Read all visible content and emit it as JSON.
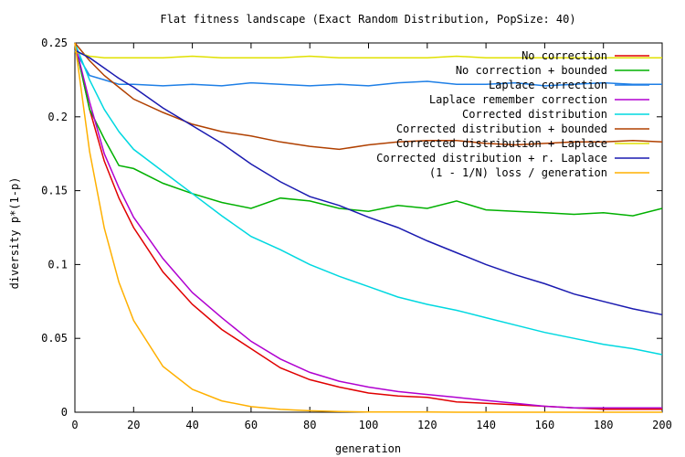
{
  "chart_data": {
    "type": "line",
    "title": "Flat fitness landscape (Exact Random Distribution, PopSize: 40)",
    "xlabel": "generation",
    "ylabel": "diversity p*(1-p)",
    "xlim": [
      0,
      200
    ],
    "ylim": [
      0,
      0.25
    ],
    "xticks": [
      "0",
      "20",
      "40",
      "60",
      "80",
      "100",
      "120",
      "140",
      "160",
      "180",
      "200"
    ],
    "yticks": [
      "0",
      "0.05",
      "0.1",
      "0.15",
      "0.2",
      "0.25"
    ],
    "grid": false,
    "legend_position": "top-right",
    "x": [
      0,
      5,
      10,
      15,
      20,
      30,
      40,
      50,
      60,
      70,
      80,
      90,
      100,
      110,
      120,
      130,
      140,
      150,
      160,
      170,
      180,
      190,
      200
    ],
    "series": [
      {
        "name": "No correction",
        "color": "#e00000",
        "values": [
          0.25,
          0.205,
          0.17,
          0.145,
          0.125,
          0.095,
          0.073,
          0.056,
          0.043,
          0.03,
          0.022,
          0.017,
          0.013,
          0.011,
          0.01,
          0.007,
          0.006,
          0.005,
          0.004,
          0.003,
          0.002,
          0.002,
          0.002
        ]
      },
      {
        "name": "No correction + bounded",
        "color": "#00b000",
        "values": [
          0.25,
          0.205,
          0.185,
          0.167,
          0.165,
          0.155,
          0.148,
          0.142,
          0.138,
          0.145,
          0.143,
          0.138,
          0.136,
          0.14,
          0.138,
          0.143,
          0.137,
          0.136,
          0.135,
          0.134,
          0.135,
          0.133,
          0.138
        ]
      },
      {
        "name": "Laplace correction",
        "color": "#1e7fe6",
        "values": [
          0.245,
          0.228,
          0.225,
          0.222,
          0.222,
          0.221,
          0.222,
          0.221,
          0.223,
          0.222,
          0.221,
          0.222,
          0.221,
          0.223,
          0.224,
          0.222,
          0.222,
          0.223,
          0.221,
          0.222,
          0.223,
          0.222,
          0.222
        ]
      },
      {
        "name": "Laplace remember correction",
        "color": "#b000d0",
        "values": [
          0.25,
          0.21,
          0.175,
          0.152,
          0.132,
          0.104,
          0.081,
          0.064,
          0.048,
          0.036,
          0.027,
          0.021,
          0.017,
          0.014,
          0.012,
          0.01,
          0.008,
          0.006,
          0.004,
          0.003,
          0.003,
          0.003,
          0.003
        ]
      },
      {
        "name": "Corrected distribution",
        "color": "#00d8e0",
        "values": [
          0.25,
          0.225,
          0.205,
          0.19,
          0.178,
          0.163,
          0.148,
          0.133,
          0.119,
          0.11,
          0.1,
          0.092,
          0.085,
          0.078,
          0.073,
          0.069,
          0.064,
          0.059,
          0.054,
          0.05,
          0.046,
          0.043,
          0.039
        ]
      },
      {
        "name": "Corrected distribution + bounded",
        "color": "#b04000",
        "values": [
          0.25,
          0.238,
          0.228,
          0.22,
          0.212,
          0.203,
          0.195,
          0.19,
          0.187,
          0.183,
          0.18,
          0.178,
          0.181,
          0.183,
          0.184,
          0.184,
          0.182,
          0.181,
          0.182,
          0.183,
          0.183,
          0.184,
          0.183
        ]
      },
      {
        "name": "Corrected distribution + Laplace",
        "color": "#e0e000",
        "values": [
          0.244,
          0.241,
          0.24,
          0.24,
          0.24,
          0.24,
          0.241,
          0.24,
          0.24,
          0.24,
          0.241,
          0.24,
          0.24,
          0.24,
          0.24,
          0.241,
          0.24,
          0.24,
          0.24,
          0.24,
          0.24,
          0.24,
          0.24
        ]
      },
      {
        "name": "Corrected distribution + r. Laplace",
        "color": "#1a1ab0",
        "values": [
          0.245,
          0.24,
          0.233,
          0.226,
          0.22,
          0.206,
          0.194,
          0.182,
          0.168,
          0.156,
          0.146,
          0.14,
          0.132,
          0.125,
          0.116,
          0.108,
          0.1,
          0.093,
          0.087,
          0.08,
          0.075,
          0.07,
          0.066
        ]
      },
      {
        "name": "(1 - 1/N) loss / generation",
        "color": "#ffb000",
        "values": [
          0.25,
          0.1765,
          0.1246,
          0.088,
          0.0621,
          0.031,
          0.0155,
          0.0077,
          0.0038,
          0.0019,
          0.001,
          0.0005,
          0.0002,
          0.0001,
          0.0001,
          0.0,
          0.0,
          0.0,
          0.0,
          0.0,
          0.0,
          0.0,
          0.0
        ]
      }
    ]
  }
}
